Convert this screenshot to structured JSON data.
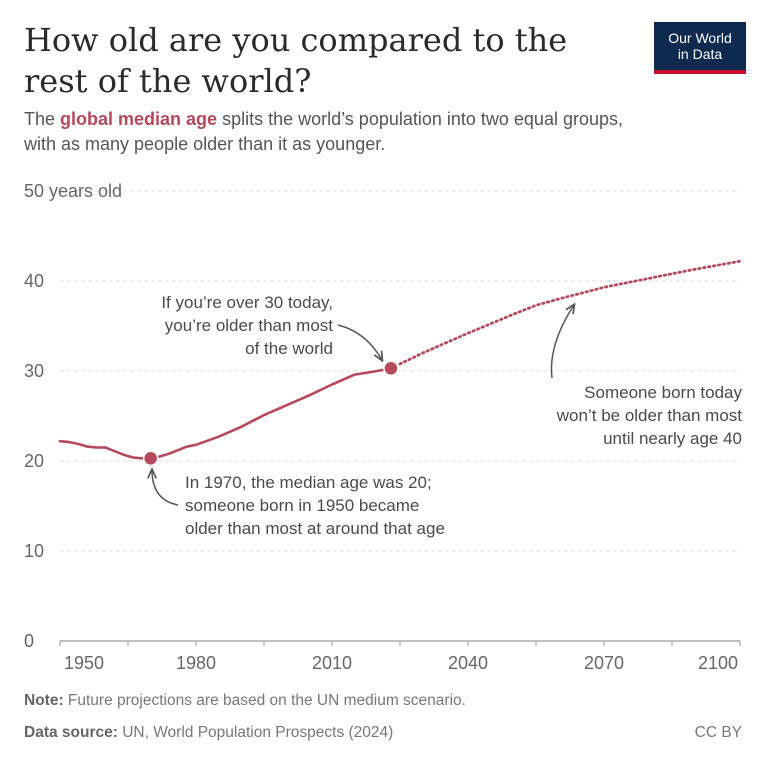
{
  "header": {
    "title": "How old are you compared to the rest of the world?",
    "subtitle_highlight": "global median age",
    "subtitle_prefix": "The ",
    "subtitle_suffix": " splits the world’s population into two equal groups, with as many people older than it as younger."
  },
  "logo": {
    "line1": "Our World",
    "line2": "in Data"
  },
  "chart_data": {
    "type": "line",
    "x_ticks": [
      "1950",
      "1980",
      "2010",
      "2040",
      "2070",
      "2100"
    ],
    "y_ticks": [
      "0",
      "10",
      "20",
      "30",
      "40",
      "50 years old"
    ],
    "ylim": [
      0,
      50
    ],
    "xlim": [
      1950,
      2100
    ],
    "grid": true,
    "colors": {
      "line": "#b5495b",
      "grid": "#dddddd",
      "axis": "#999999"
    },
    "series": [
      {
        "style": "solid",
        "x": [
          1950,
          1952,
          1954,
          1956,
          1958,
          1960,
          1962,
          1964,
          1966,
          1968,
          1970,
          1972,
          1974,
          1976,
          1978,
          1980,
          1985,
          1990,
          1995,
          2000,
          2005,
          2010,
          2015,
          2020,
          2023
        ],
        "y": [
          22.2,
          22.1,
          21.9,
          21.6,
          21.5,
          21.5,
          21.1,
          20.7,
          20.4,
          20.3,
          20.3,
          20.5,
          20.8,
          21.2,
          21.6,
          21.8,
          22.7,
          23.8,
          25.1,
          26.2,
          27.3,
          28.5,
          29.6,
          30.0,
          30.3
        ]
      },
      {
        "style": "dotted",
        "x": [
          2023,
          2030,
          2040,
          2050,
          2055,
          2060,
          2070,
          2080,
          2090,
          2100
        ],
        "y": [
          30.3,
          32.0,
          34.2,
          36.3,
          37.3,
          38.0,
          39.3,
          40.3,
          41.3,
          42.2
        ]
      }
    ],
    "points": [
      {
        "x": 1970,
        "y": 20.3
      },
      {
        "x": 2023,
        "y": 30.3
      }
    ],
    "annotations": [
      {
        "lines": [
          "If you’re over 30 today,",
          "you’re older than most",
          "of the world"
        ]
      },
      {
        "lines": [
          "In 1970, the median age was 20;",
          "someone born in 1950 became",
          "older than most at around that age"
        ]
      },
      {
        "lines": [
          "Someone born today",
          "won’t be older than most",
          "until nearly age 40"
        ]
      }
    ]
  },
  "footer": {
    "note_label": "Note:",
    "note_text": " Future projections are based on the UN medium scenario.",
    "source_label": "Data source:",
    "source_text": " UN, World Population Prospects (2024)",
    "license": "CC BY"
  }
}
